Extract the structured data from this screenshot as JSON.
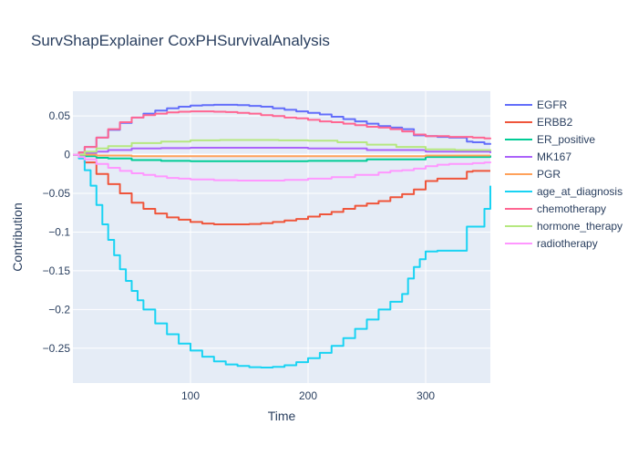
{
  "chart_data": {
    "type": "line",
    "title": "SurvShapExplainer CoxPHSurvivalAnalysis",
    "xlabel": "Time",
    "ylabel": "Contribution",
    "xlim": [
      0,
      355
    ],
    "ylim": [
      -0.295,
      0.082
    ],
    "xticks": [
      100,
      200,
      300
    ],
    "yticks": [
      0.05,
      0,
      -0.05,
      -0.1,
      -0.15,
      -0.2,
      -0.25
    ],
    "ytick_labels": [
      "0.05",
      "0",
      "−0.05",
      "−0.1",
      "−0.15",
      "−0.2",
      "−0.25"
    ],
    "grid": true,
    "legend_position": "right",
    "series": [
      {
        "name": "EGFR",
        "color": "#636efa",
        "x": [
          0,
          5,
          10,
          20,
          30,
          40,
          50,
          60,
          70,
          80,
          90,
          100,
          110,
          120,
          130,
          140,
          150,
          160,
          170,
          180,
          190,
          200,
          210,
          220,
          230,
          240,
          250,
          260,
          270,
          280,
          290,
          300,
          310,
          320,
          330,
          335,
          340,
          350,
          355
        ],
        "y": [
          0,
          0.003,
          0.01,
          0.022,
          0.032,
          0.041,
          0.048,
          0.053,
          0.057,
          0.06,
          0.062,
          0.0635,
          0.064,
          0.0645,
          0.0645,
          0.064,
          0.063,
          0.062,
          0.06,
          0.058,
          0.056,
          0.054,
          0.052,
          0.049,
          0.046,
          0.043,
          0.04,
          0.037,
          0.035,
          0.033,
          0.025,
          0.024,
          0.023,
          0.022,
          0.022,
          0.017,
          0.016,
          0.014,
          0.013
        ]
      },
      {
        "name": "ERBB2",
        "color": "#ef553b",
        "x": [
          0,
          5,
          10,
          20,
          30,
          40,
          50,
          60,
          70,
          80,
          90,
          100,
          110,
          120,
          130,
          140,
          150,
          160,
          170,
          180,
          190,
          200,
          210,
          220,
          230,
          240,
          250,
          260,
          270,
          280,
          290,
          300,
          310,
          320,
          330,
          335,
          340,
          350,
          355
        ],
        "y": [
          0,
          -0.003,
          -0.01,
          -0.025,
          -0.038,
          -0.05,
          -0.062,
          -0.07,
          -0.076,
          -0.081,
          -0.084,
          -0.087,
          -0.089,
          -0.09,
          -0.09,
          -0.09,
          -0.0895,
          -0.0885,
          -0.087,
          -0.085,
          -0.083,
          -0.08,
          -0.077,
          -0.074,
          -0.07,
          -0.066,
          -0.063,
          -0.06,
          -0.055,
          -0.051,
          -0.045,
          -0.034,
          -0.031,
          -0.031,
          -0.031,
          -0.022,
          -0.021,
          -0.021,
          -0.021
        ]
      },
      {
        "name": "ER_positive",
        "color": "#00cc96",
        "x": [
          0,
          5,
          10,
          20,
          30,
          50,
          75,
          100,
          150,
          200,
          250,
          300,
          355
        ],
        "y": [
          0,
          -0.001,
          -0.002,
          -0.004,
          -0.005,
          -0.007,
          -0.008,
          -0.0085,
          -0.0085,
          -0.008,
          -0.006,
          -0.003,
          -0.001
        ]
      },
      {
        "name": "MK167",
        "color": "#ab63fa",
        "x": [
          0,
          10,
          20,
          30,
          50,
          75,
          100,
          150,
          200,
          250,
          300,
          355
        ],
        "y": [
          0,
          0.002,
          0.004,
          0.006,
          0.008,
          0.0085,
          0.009,
          0.009,
          0.008,
          0.006,
          0.004,
          0.002
        ]
      },
      {
        "name": "PGR",
        "color": "#ffa15a",
        "x": [
          0,
          10,
          20,
          50,
          100,
          150,
          200,
          250,
          300,
          355
        ],
        "y": [
          0,
          0,
          -0.001,
          -0.002,
          -0.002,
          -0.002,
          -0.002,
          -0.002,
          -0.001,
          -0.001
        ]
      },
      {
        "name": "age_at_diagnosis",
        "color": "#19d3f3",
        "x": [
          0,
          5,
          10,
          15,
          20,
          25,
          30,
          35,
          40,
          45,
          50,
          55,
          60,
          70,
          80,
          90,
          100,
          110,
          120,
          130,
          140,
          150,
          160,
          170,
          180,
          190,
          200,
          210,
          220,
          230,
          240,
          250,
          260,
          270,
          275,
          280,
          285,
          290,
          295,
          300,
          310,
          320,
          330,
          335,
          340,
          345,
          350,
          355
        ],
        "y": [
          0,
          -0.005,
          -0.02,
          -0.04,
          -0.065,
          -0.09,
          -0.11,
          -0.13,
          -0.148,
          -0.163,
          -0.176,
          -0.188,
          -0.2,
          -0.218,
          -0.232,
          -0.244,
          -0.253,
          -0.261,
          -0.267,
          -0.271,
          -0.273,
          -0.2745,
          -0.275,
          -0.274,
          -0.272,
          -0.268,
          -0.263,
          -0.256,
          -0.247,
          -0.237,
          -0.225,
          -0.213,
          -0.2,
          -0.19,
          -0.19,
          -0.18,
          -0.16,
          -0.145,
          -0.135,
          -0.125,
          -0.124,
          -0.124,
          -0.124,
          -0.093,
          -0.093,
          -0.093,
          -0.07,
          -0.04
        ]
      },
      {
        "name": "chemotherapy",
        "color": "#ff6692",
        "x": [
          0,
          5,
          10,
          20,
          30,
          40,
          50,
          60,
          70,
          80,
          90,
          100,
          110,
          120,
          130,
          140,
          150,
          160,
          170,
          180,
          190,
          200,
          210,
          220,
          230,
          240,
          250,
          260,
          270,
          280,
          290,
          300,
          310,
          320,
          330,
          340,
          350,
          355
        ],
        "y": [
          0,
          0.003,
          0.01,
          0.022,
          0.033,
          0.042,
          0.048,
          0.051,
          0.053,
          0.0545,
          0.0555,
          0.056,
          0.056,
          0.0555,
          0.055,
          0.054,
          0.053,
          0.051,
          0.05,
          0.048,
          0.047,
          0.045,
          0.043,
          0.042,
          0.04,
          0.038,
          0.036,
          0.035,
          0.033,
          0.03,
          0.026,
          0.024,
          0.024,
          0.023,
          0.023,
          0.022,
          0.021,
          0.02
        ]
      },
      {
        "name": "hormone_therapy",
        "color": "#b6e880",
        "x": [
          0,
          10,
          20,
          30,
          50,
          75,
          100,
          125,
          150,
          175,
          200,
          225,
          250,
          275,
          300,
          325,
          355
        ],
        "y": [
          0,
          0.004,
          0.008,
          0.011,
          0.015,
          0.017,
          0.0185,
          0.019,
          0.019,
          0.0185,
          0.018,
          0.016,
          0.013,
          0.01,
          0.007,
          0.006,
          0.005
        ]
      },
      {
        "name": "radiotherapy",
        "color": "#ff97ff",
        "x": [
          0,
          5,
          10,
          20,
          30,
          40,
          50,
          60,
          70,
          80,
          90,
          100,
          120,
          140,
          150,
          160,
          180,
          200,
          220,
          240,
          260,
          270,
          280,
          290,
          300,
          310,
          320,
          330,
          340,
          350,
          355
        ],
        "y": [
          0,
          -0.003,
          -0.006,
          -0.012,
          -0.017,
          -0.021,
          -0.024,
          -0.026,
          -0.028,
          -0.03,
          -0.031,
          -0.032,
          -0.033,
          -0.0335,
          -0.0335,
          -0.0335,
          -0.0325,
          -0.031,
          -0.029,
          -0.026,
          -0.023,
          -0.021,
          -0.02,
          -0.018,
          -0.015,
          -0.013,
          -0.012,
          -0.012,
          -0.011,
          -0.01,
          -0.009
        ]
      }
    ]
  }
}
